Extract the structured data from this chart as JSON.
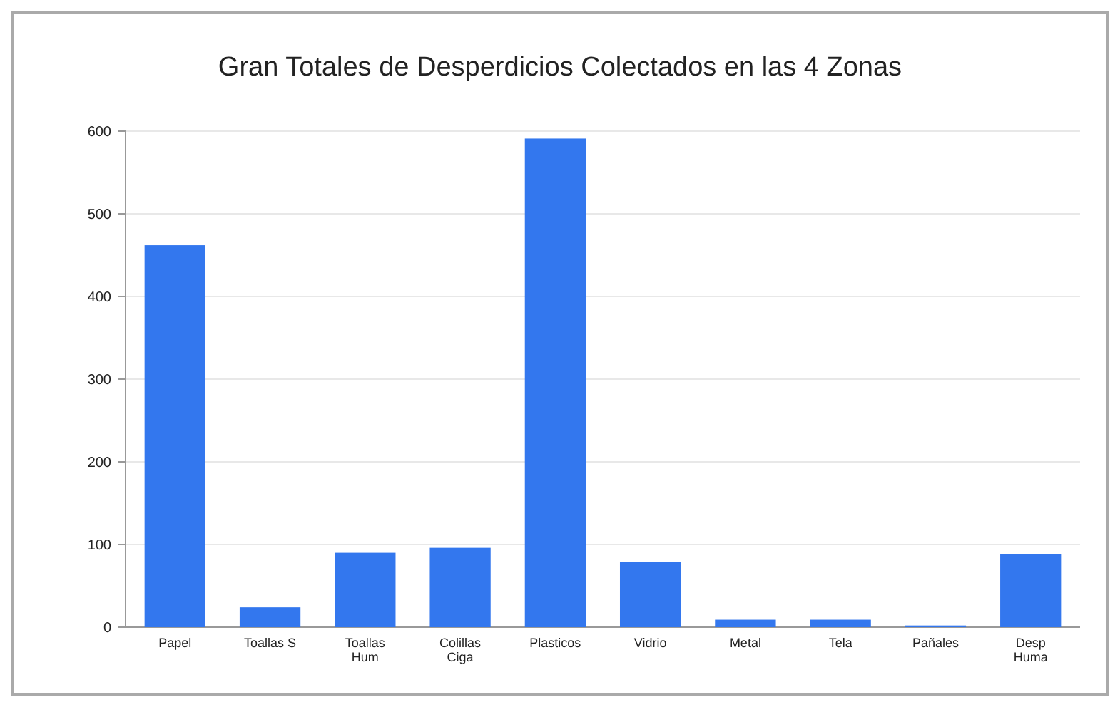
{
  "chart_data": {
    "type": "bar",
    "title": "Gran Totales de Desperdicios Colectados en las 4 Zonas",
    "categories": [
      "Papel",
      "Toallas S",
      "Toallas\nHum",
      "Colillas\nCiga",
      "Plasticos",
      "Vidrio",
      "Metal",
      "Tela",
      "Pañales",
      "Desp\nHuma"
    ],
    "values": [
      462,
      24,
      90,
      96,
      591,
      79,
      9,
      9,
      2,
      88
    ],
    "color": "#3377ee",
    "ylim": [
      0,
      600
    ],
    "yticks": [
      0,
      100,
      200,
      300,
      400,
      500,
      600
    ],
    "grid": "y"
  }
}
